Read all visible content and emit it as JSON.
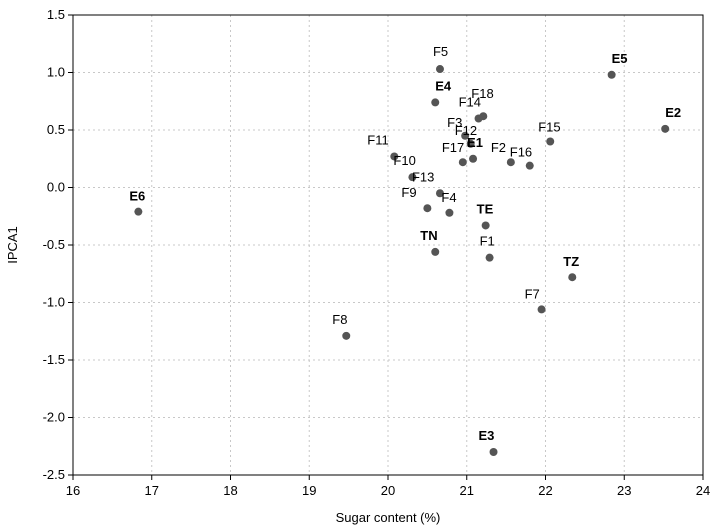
{
  "chart_data": {
    "type": "scatter",
    "title": "",
    "xlabel": "Sugar content (%)",
    "ylabel": "IPCA1",
    "xlim": [
      16,
      24
    ],
    "ylim": [
      -2.5,
      1.5
    ],
    "x_ticks": [
      "16",
      "17",
      "18",
      "19",
      "20",
      "21",
      "22",
      "23",
      "24"
    ],
    "y_ticks": [
      "1.5",
      "1.0",
      "0.5",
      "0.0",
      "-0.5",
      "-1.0",
      "-1.5",
      "-2.0",
      "-2.5"
    ],
    "grid": true,
    "points": [
      {
        "label": "F5",
        "x": 20.66,
        "y": 1.03,
        "bold": false
      },
      {
        "label": "E5",
        "x": 22.84,
        "y": 0.98,
        "bold": true
      },
      {
        "label": "E4",
        "x": 20.6,
        "y": 0.74,
        "bold": true
      },
      {
        "label": "F18",
        "x": 21.21,
        "y": 0.62,
        "bold": false
      },
      {
        "label": "F14",
        "x": 21.15,
        "y": 0.6,
        "bold": false
      },
      {
        "label": "E2",
        "x": 23.52,
        "y": 0.51,
        "bold": true
      },
      {
        "label": "F3",
        "x": 20.98,
        "y": 0.45,
        "bold": false
      },
      {
        "label": "F12",
        "x": 21.05,
        "y": 0.38,
        "bold": false
      },
      {
        "label": "F15",
        "x": 22.06,
        "y": 0.4,
        "bold": false
      },
      {
        "label": "F11",
        "x": 20.08,
        "y": 0.27,
        "bold": false
      },
      {
        "label": "F17",
        "x": 20.95,
        "y": 0.22,
        "bold": false
      },
      {
        "label": "E1",
        "x": 21.08,
        "y": 0.25,
        "bold": true
      },
      {
        "label": "F2",
        "x": 21.56,
        "y": 0.22,
        "bold": false
      },
      {
        "label": "F16",
        "x": 21.8,
        "y": 0.19,
        "bold": false
      },
      {
        "label": "F10",
        "x": 20.31,
        "y": 0.09,
        "bold": false
      },
      {
        "label": "F13",
        "x": 20.66,
        "y": -0.05,
        "bold": false
      },
      {
        "label": "E6",
        "x": 16.83,
        "y": -0.21,
        "bold": true
      },
      {
        "label": "F9",
        "x": 20.5,
        "y": -0.18,
        "bold": false
      },
      {
        "label": "F4",
        "x": 20.78,
        "y": -0.22,
        "bold": false
      },
      {
        "label": "TE",
        "x": 21.24,
        "y": -0.33,
        "bold": true
      },
      {
        "label": "TN",
        "x": 20.6,
        "y": -0.56,
        "bold": true
      },
      {
        "label": "F1",
        "x": 21.29,
        "y": -0.61,
        "bold": false
      },
      {
        "label": "TZ",
        "x": 22.34,
        "y": -0.78,
        "bold": true
      },
      {
        "label": "F7",
        "x": 21.95,
        "y": -1.06,
        "bold": false
      },
      {
        "label": "F8",
        "x": 19.47,
        "y": -1.29,
        "bold": false
      },
      {
        "label": "E3",
        "x": 21.34,
        "y": -2.3,
        "bold": true
      }
    ]
  }
}
